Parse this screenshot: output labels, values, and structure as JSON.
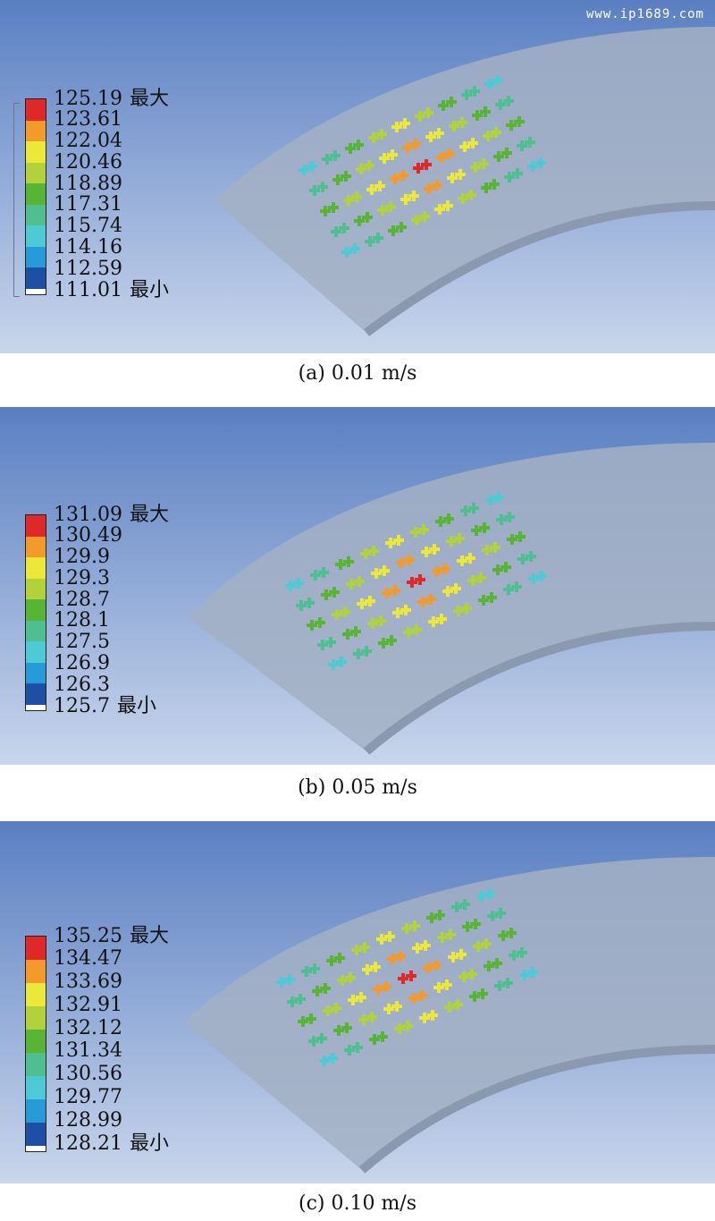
{
  "watermark": "www.ip1689.com",
  "panels": [
    {
      "caption": "(a) 0.01 m/s",
      "labels": [
        "125.19",
        "123.61",
        "122.04",
        "120.46",
        "118.89",
        "117.31",
        "115.74",
        "114.16",
        "112.59",
        "111.01"
      ],
      "max_tag": "最大",
      "min_tag": "最小"
    },
    {
      "caption": "(b) 0.05 m/s",
      "labels": [
        "131.09",
        "130.49",
        "129.9",
        "129.3",
        "128.7",
        "128.1",
        "127.5",
        "126.9",
        "126.3",
        "125.7"
      ],
      "max_tag": "最大",
      "min_tag": "最小"
    },
    {
      "caption": "(c) 0.10 m/s",
      "labels": [
        "135.25",
        "134.47",
        "133.69",
        "132.91",
        "132.12",
        "131.34",
        "130.56",
        "129.77",
        "128.99",
        "128.21"
      ],
      "max_tag": "最大",
      "min_tag": "最小"
    }
  ],
  "colors": {
    "scale": [
      "#e02828",
      "#f39a2a",
      "#ece83a",
      "#b2d23c",
      "#58b434",
      "#4fbe90",
      "#4ecad6",
      "#279ad8",
      "#1e4fa6"
    ],
    "background_top": "#5a7fc2",
    "background_bottom": "#c9d6ec",
    "plate": "#a3b0c4"
  }
}
